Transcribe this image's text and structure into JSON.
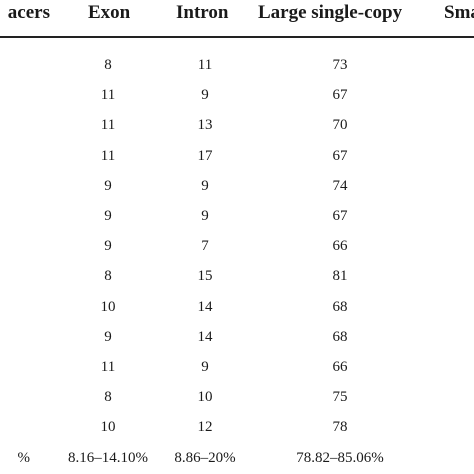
{
  "table": {
    "headers": [
      "acers",
      "Exon",
      "Intron",
      "Large single-copy",
      "Sma"
    ],
    "rows": [
      [
        "",
        "8",
        "11",
        "73"
      ],
      [
        "",
        "11",
        "9",
        "67"
      ],
      [
        "",
        "11",
        "13",
        "70"
      ],
      [
        "",
        "11",
        "17",
        "67"
      ],
      [
        "",
        "9",
        "9",
        "74"
      ],
      [
        "",
        "9",
        "9",
        "67"
      ],
      [
        "",
        "9",
        "7",
        "66"
      ],
      [
        "",
        "8",
        "15",
        "81"
      ],
      [
        "",
        "10",
        "14",
        "68"
      ],
      [
        "",
        "9",
        "14",
        "68"
      ],
      [
        "",
        "11",
        "9",
        "66"
      ],
      [
        "",
        "8",
        "10",
        "75"
      ],
      [
        "",
        "10",
        "12",
        "78"
      ],
      [
        "%",
        "8.16–14.10%",
        "8.86–20%",
        "78.82–85.06%"
      ]
    ]
  }
}
